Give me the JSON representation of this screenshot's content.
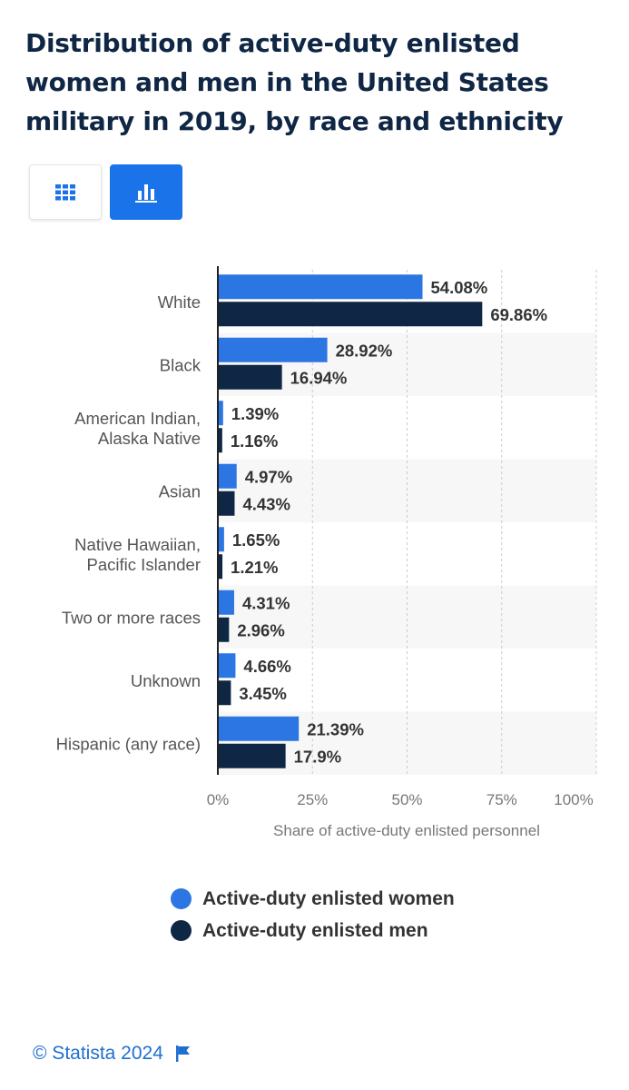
{
  "title": "Distribution of active-duty enlisted women and men in the United States military in 2019, by race and ethnicity",
  "view_toggle": {
    "table_icon": "grid-table-icon",
    "chart_icon": "bar-chart-icon",
    "active": "chart"
  },
  "colors": {
    "women": "#2b76e3",
    "men": "#0f2744",
    "accent": "#1a73e8"
  },
  "chart_data": {
    "type": "bar",
    "orientation": "horizontal",
    "categories": [
      [
        "White"
      ],
      [
        "Black"
      ],
      [
        "American Indian,",
        "Alaska Native"
      ],
      [
        "Asian"
      ],
      [
        "Native Hawaiian,",
        "Pacific Islander"
      ],
      [
        "Two or more races"
      ],
      [
        "Unknown"
      ],
      [
        "Hispanic (any race)"
      ]
    ],
    "series": [
      {
        "name": "Active-duty enlisted women",
        "values": [
          54.08,
          28.92,
          1.39,
          4.97,
          1.65,
          4.31,
          4.66,
          21.39
        ],
        "labels": [
          "54.08%",
          "28.92%",
          "1.39%",
          "4.97%",
          "1.65%",
          "4.31%",
          "4.66%",
          "21.39%"
        ]
      },
      {
        "name": "Active-duty enlisted men",
        "values": [
          69.86,
          16.94,
          1.16,
          4.43,
          1.21,
          2.96,
          3.45,
          17.9
        ],
        "labels": [
          "69.86%",
          "16.94%",
          "1.16%",
          "4.43%",
          "1.21%",
          "2.96%",
          "3.45%",
          "17.9%"
        ]
      }
    ],
    "xlim": [
      0,
      100
    ],
    "xticks": [
      0,
      25,
      50,
      75,
      100
    ],
    "xtick_labels": [
      "0%",
      "25%",
      "50%",
      "75%",
      "100%"
    ],
    "xlabel": "Share of active-duty enlisted personnel",
    "grid": true,
    "legend_position": "bottom"
  },
  "footer": {
    "copyright": "© Statista 2024",
    "flag_icon": "flag-icon"
  }
}
